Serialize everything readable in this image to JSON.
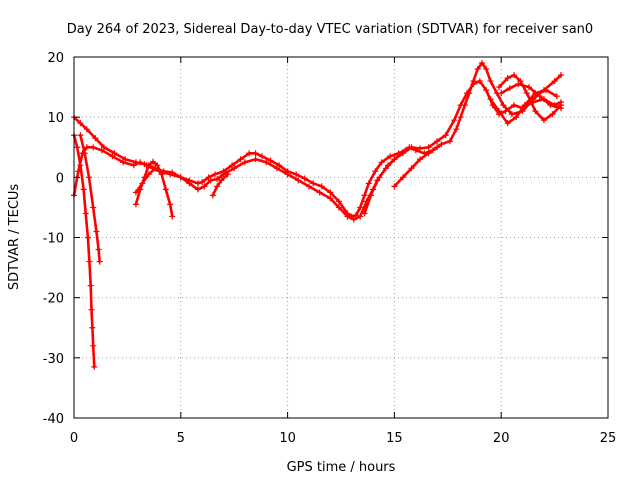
{
  "chart_data": {
    "type": "scatter",
    "title": "Day 264 of 2023, Sidereal Day-to-day VTEC variation (SDTVAR) for receiver san0",
    "xlabel": "GPS time / hours",
    "ylabel": "SDTVAR / TECUs",
    "xlim": [
      0,
      25
    ],
    "ylim": [
      -40,
      20
    ],
    "xticks": [
      0,
      5,
      10,
      15,
      20,
      25
    ],
    "yticks": [
      -40,
      -30,
      -20,
      -10,
      0,
      10,
      20
    ],
    "grid": true,
    "marker": "+",
    "color": "#ff0000",
    "series": [
      {
        "name": "trace-1",
        "points": [
          [
            0.0,
            -3
          ],
          [
            0.2,
            1
          ],
          [
            0.4,
            4
          ],
          [
            0.6,
            5
          ],
          [
            0.9,
            5
          ],
          [
            1.3,
            4.5
          ],
          [
            1.8,
            3.5
          ],
          [
            2.3,
            2.5
          ],
          [
            2.8,
            2
          ],
          [
            3.1,
            2.5
          ],
          [
            3.4,
            2
          ],
          [
            3.7,
            1.5
          ],
          [
            4.0,
            1
          ],
          [
            4.5,
            0.5
          ],
          [
            5.0,
            0
          ],
          [
            5.4,
            -0.5
          ],
          [
            5.8,
            -1
          ],
          [
            6.0,
            -0.8
          ],
          [
            6.3,
            0
          ],
          [
            6.6,
            0.5
          ],
          [
            7.0,
            1
          ],
          [
            7.4,
            2
          ],
          [
            7.8,
            3
          ],
          [
            8.2,
            4
          ],
          [
            8.5,
            4
          ],
          [
            8.8,
            3.5
          ],
          [
            9.2,
            2.8
          ],
          [
            9.6,
            2
          ],
          [
            10.0,
            1
          ],
          [
            10.4,
            0.5
          ],
          [
            10.8,
            -0.2
          ],
          [
            11.2,
            -1
          ],
          [
            11.6,
            -1.5
          ],
          [
            12.0,
            -2.5
          ],
          [
            12.4,
            -4
          ],
          [
            12.8,
            -6
          ],
          [
            13.0,
            -6.5
          ],
          [
            13.2,
            -6.3
          ],
          [
            13.4,
            -5
          ],
          [
            13.6,
            -3
          ],
          [
            13.8,
            -1
          ],
          [
            14.1,
            1
          ],
          [
            14.4,
            2.5
          ],
          [
            14.8,
            3.5
          ],
          [
            15.2,
            4
          ],
          [
            15.5,
            4.5
          ],
          [
            15.7,
            5
          ],
          [
            16.0,
            4.5
          ],
          [
            16.4,
            4
          ],
          [
            16.8,
            4.5
          ],
          [
            17.2,
            5.5
          ],
          [
            17.6,
            6
          ],
          [
            17.9,
            8
          ],
          [
            18.1,
            10
          ],
          [
            18.3,
            12
          ],
          [
            18.5,
            14
          ],
          [
            18.7,
            16
          ],
          [
            18.9,
            18
          ],
          [
            19.1,
            19
          ],
          [
            19.3,
            18
          ],
          [
            19.5,
            16
          ],
          [
            19.8,
            14
          ],
          [
            20.1,
            12
          ],
          [
            20.5,
            10.5
          ],
          [
            21.0,
            11
          ],
          [
            21.5,
            13
          ],
          [
            22.0,
            14.5
          ],
          [
            22.5,
            16
          ],
          [
            22.8,
            17
          ]
        ]
      },
      {
        "name": "trace-2",
        "points": [
          [
            0.0,
            10
          ],
          [
            0.3,
            9
          ],
          [
            0.6,
            8
          ],
          [
            1.0,
            6.5
          ],
          [
            1.4,
            5
          ],
          [
            1.9,
            4
          ],
          [
            2.4,
            3
          ],
          [
            2.9,
            2.5
          ],
          [
            3.3,
            2.2
          ],
          [
            3.8,
            1.5
          ],
          [
            4.2,
            1
          ],
          [
            4.6,
            0.8
          ],
          [
            5.0,
            0
          ],
          [
            5.4,
            -1
          ],
          [
            5.8,
            -2
          ],
          [
            6.1,
            -1.5
          ],
          [
            6.4,
            -0.5
          ],
          [
            6.7,
            -0.3
          ],
          [
            7.0,
            0.5
          ],
          [
            7.5,
            1.5
          ],
          [
            8.0,
            2.5
          ],
          [
            8.5,
            3
          ],
          [
            9.0,
            2.5
          ],
          [
            9.5,
            1.5
          ],
          [
            10.0,
            0.5
          ],
          [
            10.5,
            -0.5
          ],
          [
            11.0,
            -1.5
          ],
          [
            11.5,
            -2.5
          ],
          [
            12.0,
            -3.5
          ],
          [
            12.4,
            -5
          ],
          [
            12.8,
            -6.5
          ],
          [
            13.1,
            -7
          ],
          [
            13.4,
            -6.5
          ],
          [
            13.7,
            -4
          ],
          [
            14.0,
            -2
          ],
          [
            14.3,
            0
          ],
          [
            14.7,
            2
          ],
          [
            15.0,
            3
          ],
          [
            15.4,
            4
          ],
          [
            15.8,
            5
          ],
          [
            16.2,
            4.8
          ],
          [
            16.6,
            5
          ],
          [
            17.0,
            6
          ],
          [
            17.4,
            7
          ],
          [
            17.8,
            9.5
          ],
          [
            18.1,
            12
          ],
          [
            18.4,
            14
          ],
          [
            18.7,
            15.5
          ],
          [
            19.0,
            16
          ],
          [
            19.3,
            14.5
          ],
          [
            19.6,
            12
          ],
          [
            19.9,
            10.5
          ],
          [
            20.2,
            11
          ],
          [
            20.6,
            12
          ],
          [
            21.0,
            11.5
          ],
          [
            21.5,
            12.5
          ],
          [
            22.0,
            13
          ],
          [
            22.5,
            12
          ],
          [
            22.8,
            12.5
          ]
        ]
      },
      {
        "name": "trace-3",
        "points": [
          [
            0.0,
            7
          ],
          [
            0.15,
            5
          ],
          [
            0.3,
            2
          ],
          [
            0.45,
            -2
          ],
          [
            0.55,
            -6
          ],
          [
            0.65,
            -10
          ],
          [
            0.72,
            -14
          ],
          [
            0.78,
            -18
          ],
          [
            0.82,
            -22
          ],
          [
            0.86,
            -25
          ],
          [
            0.9,
            -28
          ],
          [
            0.95,
            -31.5
          ]
        ]
      },
      {
        "name": "trace-4",
        "points": [
          [
            0.3,
            7
          ],
          [
            0.5,
            4
          ],
          [
            0.7,
            0
          ],
          [
            0.9,
            -5
          ],
          [
            1.05,
            -9
          ],
          [
            1.15,
            -12
          ],
          [
            1.2,
            -14
          ]
        ]
      },
      {
        "name": "trace-5",
        "points": [
          [
            2.9,
            -4.5
          ],
          [
            3.1,
            -2
          ],
          [
            3.3,
            0
          ],
          [
            3.5,
            2
          ],
          [
            3.7,
            2.6
          ],
          [
            3.9,
            2
          ],
          [
            4.1,
            0.5
          ],
          [
            4.3,
            -2
          ],
          [
            4.5,
            -4.5
          ],
          [
            4.6,
            -6.5
          ]
        ]
      },
      {
        "name": "trace-6",
        "points": [
          [
            2.9,
            -2.5
          ],
          [
            3.2,
            -1
          ],
          [
            3.5,
            0.5
          ],
          [
            3.8,
            1.5
          ]
        ]
      },
      {
        "name": "trace-7",
        "points": [
          [
            6.5,
            -3
          ],
          [
            6.7,
            -1.5
          ],
          [
            6.9,
            -0.5
          ],
          [
            7.2,
            0.5
          ]
        ]
      },
      {
        "name": "trace-8",
        "points": [
          [
            13.6,
            -6
          ],
          [
            13.9,
            -3
          ],
          [
            14.2,
            -0.5
          ],
          [
            14.6,
            1.5
          ],
          [
            15.0,
            3
          ],
          [
            15.4,
            4.2
          ]
        ]
      },
      {
        "name": "trace-9",
        "points": [
          [
            15.0,
            -1.5
          ],
          [
            15.4,
            0
          ],
          [
            15.8,
            1.5
          ],
          [
            16.2,
            3
          ],
          [
            16.6,
            4
          ],
          [
            17.0,
            5
          ]
        ]
      },
      {
        "name": "trace-10",
        "points": [
          [
            19.9,
            15
          ],
          [
            20.3,
            16.5
          ],
          [
            20.6,
            17
          ],
          [
            20.9,
            16
          ],
          [
            21.2,
            14
          ],
          [
            21.6,
            11
          ],
          [
            22.0,
            9.5
          ],
          [
            22.4,
            10.5
          ],
          [
            22.8,
            12
          ]
        ]
      },
      {
        "name": "trace-11",
        "points": [
          [
            20.0,
            14
          ],
          [
            20.4,
            14.8
          ],
          [
            20.8,
            15.5
          ],
          [
            21.3,
            15
          ],
          [
            21.8,
            13.5
          ],
          [
            22.3,
            12
          ],
          [
            22.8,
            11.5
          ]
        ]
      },
      {
        "name": "trace-12",
        "points": [
          [
            19.5,
            13
          ],
          [
            19.9,
            11
          ],
          [
            20.3,
            9
          ],
          [
            20.7,
            10
          ],
          [
            21.1,
            12
          ],
          [
            21.6,
            14
          ],
          [
            22.1,
            14.5
          ],
          [
            22.6,
            13.5
          ]
        ]
      }
    ]
  }
}
